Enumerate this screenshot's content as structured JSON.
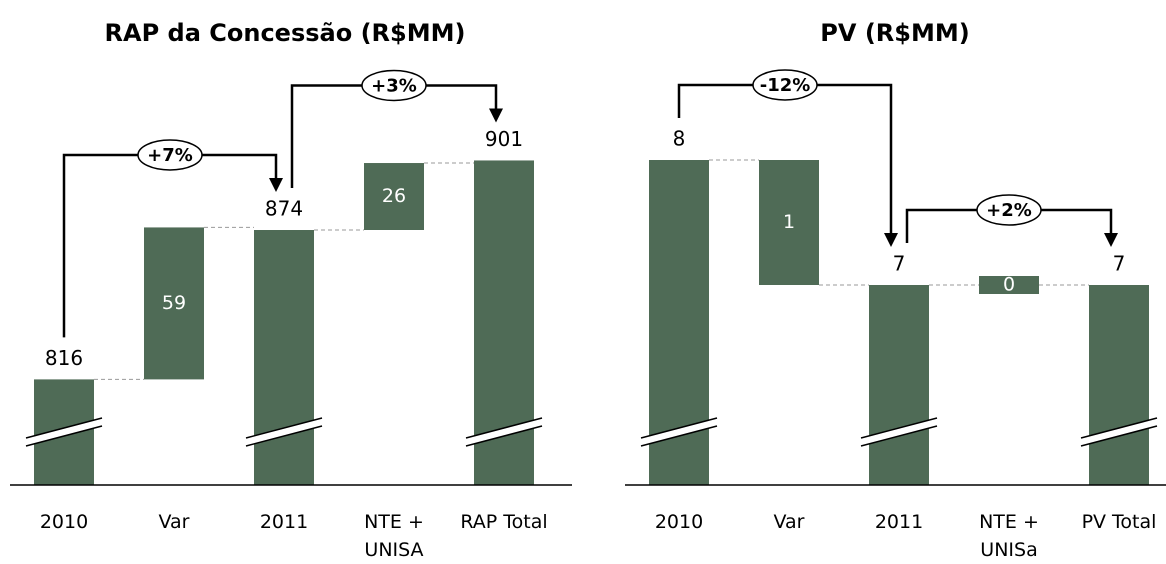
{
  "chart_data": [
    {
      "type": "waterfall",
      "title": "RAP da Concessão (R$MM)",
      "categories": [
        "2010",
        "Var",
        "2011",
        "NTE + UNISA",
        "RAP Total"
      ],
      "kinds": [
        "total",
        "delta",
        "total",
        "delta",
        "total"
      ],
      "values": [
        816,
        59,
        874,
        26,
        901
      ],
      "color": "#4f6b56",
      "ylim": [
        775,
        940
      ],
      "annotations": [
        "+7%",
        "+3%"
      ]
    },
    {
      "type": "waterfall",
      "title": "PV (R$MM)",
      "categories": [
        "2010",
        "Var",
        "2011",
        "NTE + UNISa",
        "PV Total"
      ],
      "kinds": [
        "total",
        "delta",
        "total",
        "delta",
        "total"
      ],
      "values": [
        8,
        -1,
        7,
        0,
        7
      ],
      "value_labels": [
        "8",
        "1",
        "7",
        "0",
        "7"
      ],
      "color": "#4f6b56",
      "ylim": [
        5.4,
        8.8
      ],
      "annotations": [
        "-12%",
        "+2%"
      ]
    }
  ]
}
